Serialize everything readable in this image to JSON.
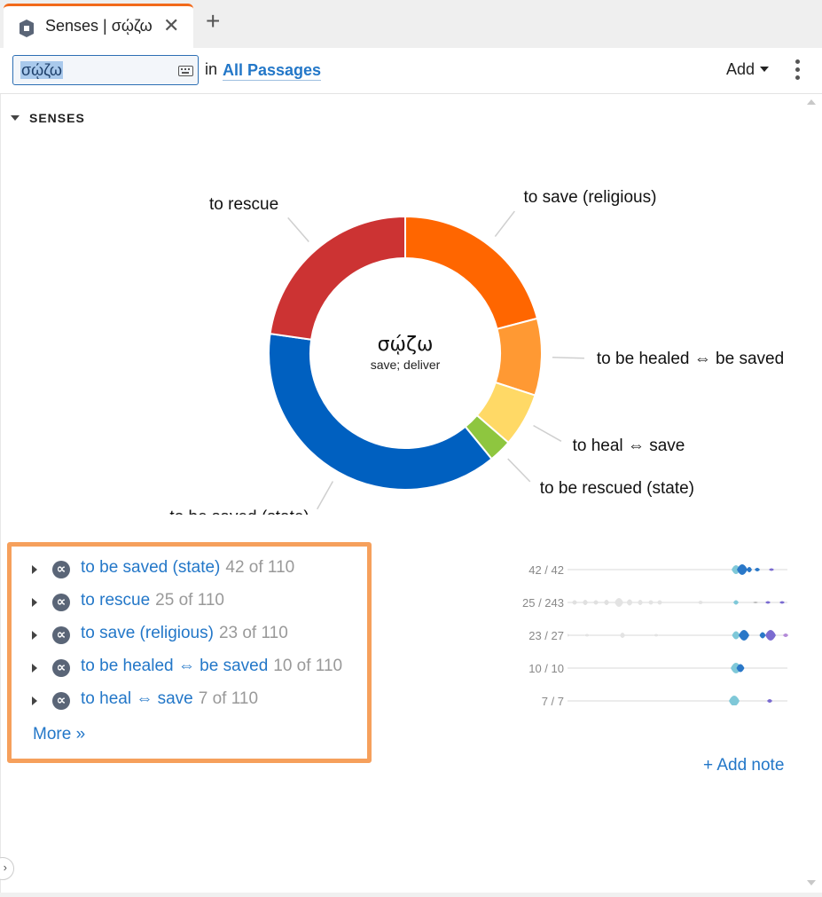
{
  "tab": {
    "title": "Senses | σῴζω",
    "close_glyph": "✕",
    "add_glyph": "+"
  },
  "toolbar": {
    "search_value": "σῴζω",
    "in_label": "in",
    "scope_label": "All Passages",
    "add_label": "Add"
  },
  "section": {
    "title": "SENSES"
  },
  "donut": {
    "center_word": "σῴζω",
    "center_gloss": "save; deliver"
  },
  "chart_data": {
    "type": "pie",
    "title": "",
    "total": 110,
    "slices": [
      {
        "label": "to save (religious)",
        "value": 23,
        "color": "#ff6600"
      },
      {
        "label": "to be healed ⇔ be saved",
        "value": 10,
        "color": "#ff9933"
      },
      {
        "label": "to heal ⇔ save",
        "value": 7,
        "color": "#ffd966"
      },
      {
        "label": "to be rescued (state)",
        "value": 3,
        "color": "#8ec63f"
      },
      {
        "label": "to be saved (state)",
        "value": 42,
        "color": "#0060c0"
      },
      {
        "label": "to rescue",
        "value": 25,
        "color": "#cc3333"
      }
    ]
  },
  "senses": {
    "items": [
      {
        "label": "to be saved (state)",
        "count": "42 of 110",
        "ratio": "42 / 42"
      },
      {
        "label": "to rescue",
        "count": "25 of 110",
        "ratio": "25 / 243"
      },
      {
        "label": "to save (religious)",
        "count": "23 of 110",
        "ratio": "23 / 27"
      },
      {
        "label": "to be healed ⇔ be saved",
        "count": "10 of 110",
        "ratio": "10 / 10"
      },
      {
        "label": "to heal ⇔ save",
        "count": "7 of 110",
        "ratio": "7 / 7"
      }
    ],
    "icon_glyph": "∝",
    "more_label": "More »"
  },
  "note": {
    "add_label": "+ Add note"
  },
  "ui": {
    "collapse_glyph": "›"
  },
  "colors": {
    "accent": "#2377c8",
    "highlight_border": "#f6a05c",
    "tab_accent": "#f26a1b"
  }
}
